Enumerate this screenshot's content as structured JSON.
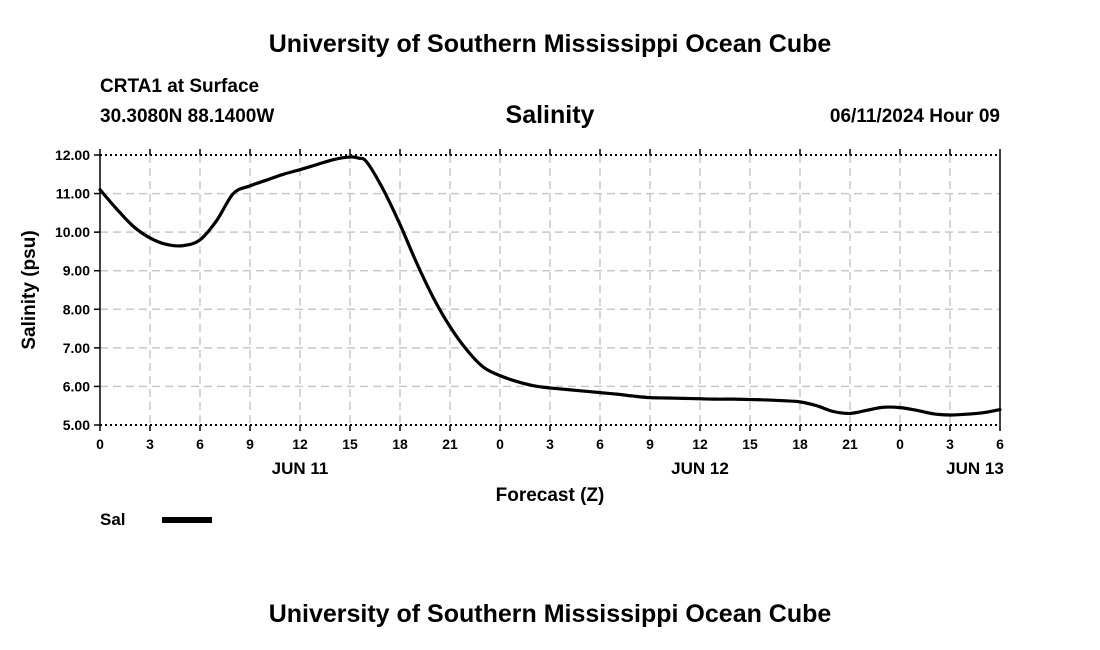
{
  "header": {
    "title": "University of Southern Mississippi Ocean Cube",
    "station": "CRTA1 at Surface",
    "coords": "30.3080N  88.1400W",
    "variable": "Salinity",
    "datetime": "06/11/2024 Hour 09",
    "footer_title": "University of Southern Mississippi Ocean Cube"
  },
  "legend": {
    "label": "Sal",
    "color": "#000000"
  },
  "chart_data": {
    "type": "line",
    "title": "Salinity",
    "xlabel": "Forecast (Z)",
    "ylabel": "Salinity (psu)",
    "ylim": [
      5.0,
      12.0
    ],
    "xlim": [
      0,
      54
    ],
    "x_unit": "hours since 2024-06-11 00Z",
    "y_ticks": [
      "5.00",
      "6.00",
      "7.00",
      "8.00",
      "9.00",
      "10.00",
      "11.00",
      "12.00"
    ],
    "x_ticks": [
      {
        "x": 0,
        "label": "0"
      },
      {
        "x": 3,
        "label": "3"
      },
      {
        "x": 6,
        "label": "6"
      },
      {
        "x": 9,
        "label": "9"
      },
      {
        "x": 12,
        "label": "12"
      },
      {
        "x": 15,
        "label": "15"
      },
      {
        "x": 18,
        "label": "18"
      },
      {
        "x": 21,
        "label": "21"
      },
      {
        "x": 24,
        "label": "0"
      },
      {
        "x": 27,
        "label": "3"
      },
      {
        "x": 30,
        "label": "6"
      },
      {
        "x": 33,
        "label": "9"
      },
      {
        "x": 36,
        "label": "12"
      },
      {
        "x": 39,
        "label": "15"
      },
      {
        "x": 42,
        "label": "18"
      },
      {
        "x": 45,
        "label": "21"
      },
      {
        "x": 48,
        "label": "0"
      },
      {
        "x": 51,
        "label": "3"
      },
      {
        "x": 54,
        "label": "6"
      }
    ],
    "day_labels": [
      {
        "x": 12,
        "label": "JUN 11"
      },
      {
        "x": 36,
        "label": "JUN 12"
      },
      {
        "x": 52.5,
        "label": "JUN 13"
      }
    ],
    "grid": true,
    "series": [
      {
        "name": "Sal",
        "x": [
          0,
          1,
          2,
          3,
          4,
          5,
          6,
          7,
          8,
          9,
          10,
          11,
          12,
          13,
          14,
          15,
          15.5,
          16,
          17,
          18,
          19,
          20,
          21,
          22,
          23,
          24,
          25,
          26,
          27,
          28,
          29,
          30,
          31,
          32,
          33,
          34,
          35,
          36,
          37,
          38,
          39,
          40,
          41,
          42,
          43,
          44,
          45,
          46,
          47,
          48,
          49,
          50,
          51,
          52,
          53,
          54
        ],
        "values": [
          11.1,
          10.6,
          10.15,
          9.85,
          9.68,
          9.65,
          9.8,
          10.3,
          11.0,
          11.2,
          11.35,
          11.5,
          11.62,
          11.75,
          11.88,
          11.95,
          11.92,
          11.82,
          11.1,
          10.2,
          9.2,
          8.3,
          7.55,
          6.95,
          6.5,
          6.28,
          6.13,
          6.02,
          5.96,
          5.92,
          5.88,
          5.84,
          5.8,
          5.75,
          5.71,
          5.7,
          5.69,
          5.68,
          5.67,
          5.67,
          5.66,
          5.65,
          5.63,
          5.6,
          5.5,
          5.35,
          5.3,
          5.38,
          5.46,
          5.45,
          5.38,
          5.29,
          5.26,
          5.28,
          5.32,
          5.4
        ]
      }
    ]
  }
}
